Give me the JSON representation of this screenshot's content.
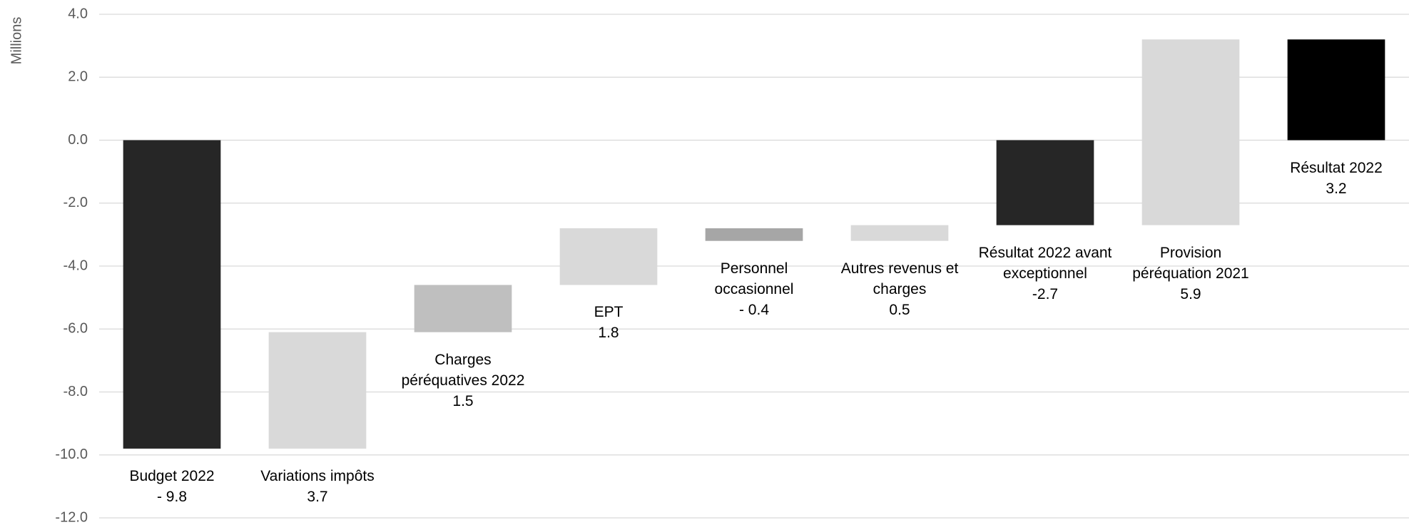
{
  "chart_data": {
    "type": "waterfall",
    "y_axis_label": "Millions",
    "categories": [
      "Budget 2022",
      "Variations impôts",
      "Charges péréquatives 2022",
      "EPT",
      "Personnel occasionnel",
      "Autres revenus et charges",
      "Résultat 2022 avant exceptionnel",
      "Provision péréquation 2021",
      "Résultat 2022"
    ],
    "values": [
      -9.8,
      3.7,
      1.5,
      1.8,
      -0.4,
      0.5,
      -2.7,
      5.9,
      3.2
    ],
    "value_labels": [
      "- 9.8",
      "3.7",
      "1.5",
      "1.8",
      "- 0.4",
      "0.5",
      "-2.7",
      "5.9",
      "3.2"
    ],
    "is_total": [
      true,
      false,
      false,
      false,
      false,
      false,
      true,
      false,
      true
    ],
    "colors": [
      "#262626",
      "#d9d9d9",
      "#bfbfbf",
      "#d9d9d9",
      "#a6a6a6",
      "#d9d9d9",
      "#262626",
      "#d9d9d9",
      "#000000"
    ],
    "ylim": [
      -12,
      4
    ],
    "yticks": [
      {
        "value": 4,
        "label": "4.0"
      },
      {
        "value": 2,
        "label": "2.0"
      },
      {
        "value": 0,
        "label": "0.0"
      },
      {
        "value": -2,
        "label": "-2.0"
      },
      {
        "value": -4,
        "label": "-4.0"
      },
      {
        "value": -6,
        "label": "-6.0"
      },
      {
        "value": -8,
        "label": "-8.0"
      },
      {
        "value": -10,
        "label": "-10.0"
      },
      {
        "value": -12,
        "label": "-12.0"
      }
    ],
    "grid": true
  }
}
